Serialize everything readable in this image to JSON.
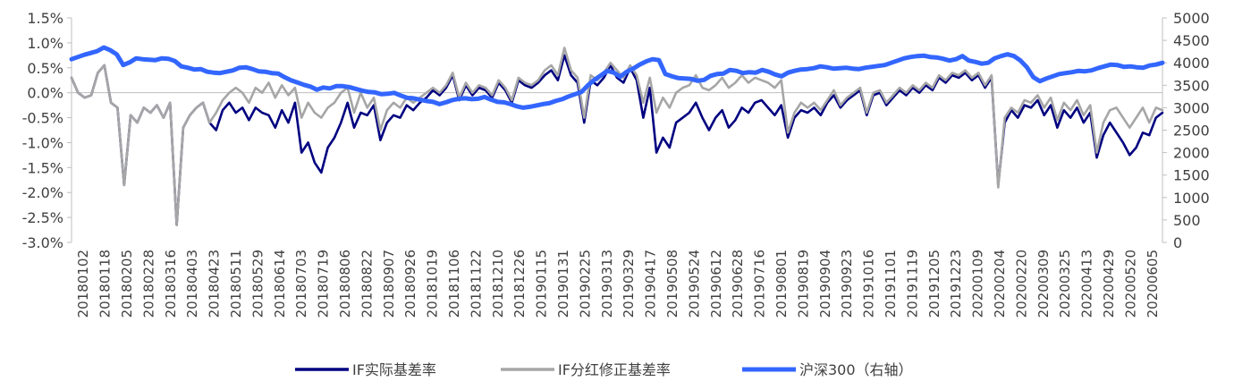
{
  "chart_data": {
    "type": "line",
    "x_tick_labels": [
      "20180102",
      "20180118",
      "20180205",
      "20180228",
      "20180316",
      "20180403",
      "20180423",
      "20180511",
      "20180529",
      "20180614",
      "20180703",
      "20180719",
      "20180806",
      "20180822",
      "20180907",
      "20180926",
      "20181019",
      "20181106",
      "20181122",
      "20181210",
      "20181226",
      "20190115",
      "20190131",
      "20190225",
      "20190313",
      "20190329",
      "20190417",
      "20190508",
      "20190524",
      "20190612",
      "20190628",
      "20190716",
      "20190801",
      "20190819",
      "20190904",
      "20190923",
      "20191016",
      "20191101",
      "20191119",
      "20191205",
      "20191223",
      "20200109",
      "20200204",
      "20200220",
      "20200309",
      "20200325",
      "20200413",
      "20200429",
      "20200520",
      "20200605"
    ],
    "y_left": {
      "ticks": [
        "-3.0%",
        "-2.5%",
        "-2.0%",
        "-1.5%",
        "-1.0%",
        "-0.5%",
        "0.0%",
        "0.5%",
        "1.0%",
        "1.5%"
      ],
      "range": [
        -3.0,
        1.5
      ],
      "unit": "%"
    },
    "y_right": {
      "ticks": [
        "0",
        "500",
        "1000",
        "1500",
        "2000",
        "2500",
        "3000",
        "3500",
        "4000",
        "4500",
        "5000"
      ],
      "range": [
        0,
        5000
      ]
    },
    "legend": [
      "IF实际基差率",
      "IF分红修正基差率",
      "沪深300（右轴）"
    ],
    "series": [
      {
        "name": "IF实际基差率",
        "axis": "left",
        "color": "#000080",
        "values": [
          0.3,
          0.0,
          -0.1,
          -0.05,
          0.4,
          0.55,
          -0.2,
          -0.3,
          -1.85,
          -0.45,
          -0.6,
          -0.3,
          -0.4,
          -0.25,
          -0.5,
          -0.2,
          -2.65,
          -0.7,
          -0.45,
          -0.3,
          -0.2,
          -0.6,
          -0.75,
          -0.35,
          -0.2,
          -0.4,
          -0.3,
          -0.55,
          -0.3,
          -0.4,
          -0.45,
          -0.7,
          -0.35,
          -0.6,
          -0.2,
          -1.2,
          -1.0,
          -1.4,
          -1.6,
          -1.1,
          -0.9,
          -0.6,
          -0.2,
          -0.7,
          -0.4,
          -0.45,
          -0.25,
          -0.95,
          -0.6,
          -0.45,
          -0.5,
          -0.25,
          -0.35,
          -0.2,
          -0.1,
          0.05,
          -0.05,
          0.1,
          0.35,
          -0.15,
          0.15,
          -0.05,
          0.1,
          0.05,
          -0.1,
          0.2,
          0.05,
          -0.2,
          0.25,
          0.15,
          0.1,
          0.2,
          0.35,
          0.45,
          0.25,
          0.75,
          0.35,
          0.2,
          -0.6,
          0.25,
          0.15,
          0.3,
          0.55,
          0.3,
          0.2,
          0.5,
          0.25,
          -0.5,
          0.1,
          -1.2,
          -0.9,
          -1.1,
          -0.6,
          -0.5,
          -0.4,
          -0.2,
          -0.5,
          -0.75,
          -0.5,
          -0.35,
          -0.7,
          -0.55,
          -0.3,
          -0.4,
          -0.2,
          -0.15,
          -0.3,
          -0.45,
          -0.25,
          -0.9,
          -0.5,
          -0.35,
          -0.4,
          -0.3,
          -0.45,
          -0.2,
          -0.05,
          -0.3,
          -0.15,
          -0.05,
          0.05,
          -0.45,
          -0.05,
          0.0,
          -0.25,
          -0.1,
          0.05,
          -0.05,
          0.1,
          0.0,
          0.15,
          0.05,
          0.3,
          0.2,
          0.35,
          0.3,
          0.4,
          0.25,
          0.35,
          0.1,
          0.3,
          -1.85,
          -0.6,
          -0.35,
          -0.5,
          -0.25,
          -0.3,
          -0.15,
          -0.45,
          -0.25,
          -0.7,
          -0.35,
          -0.5,
          -0.3,
          -0.6,
          -0.4,
          -1.3,
          -0.85,
          -0.6,
          -0.8,
          -1.0,
          -1.25,
          -1.1,
          -0.8,
          -0.85,
          -0.5,
          -0.4
        ]
      },
      {
        "name": "IF分红修正基差率",
        "axis": "left",
        "color": "#a6a6a6",
        "values": [
          0.3,
          0.0,
          -0.1,
          -0.05,
          0.4,
          0.55,
          -0.2,
          -0.3,
          -1.85,
          -0.45,
          -0.6,
          -0.3,
          -0.4,
          -0.25,
          -0.5,
          -0.2,
          -2.65,
          -0.7,
          -0.45,
          -0.3,
          -0.2,
          -0.6,
          -0.4,
          -0.15,
          0.0,
          0.1,
          0.0,
          -0.2,
          0.1,
          0.0,
          0.2,
          -0.1,
          0.15,
          -0.05,
          0.1,
          -0.5,
          -0.2,
          -0.4,
          -0.5,
          -0.3,
          -0.2,
          0.0,
          0.1,
          -0.4,
          0.0,
          -0.3,
          -0.1,
          -0.75,
          -0.35,
          -0.2,
          -0.3,
          -0.1,
          -0.2,
          -0.1,
          0.0,
          0.1,
          0.0,
          0.15,
          0.4,
          -0.1,
          0.2,
          0.0,
          0.15,
          0.1,
          -0.05,
          0.25,
          0.1,
          -0.15,
          0.3,
          0.2,
          0.15,
          0.25,
          0.45,
          0.55,
          0.35,
          0.9,
          0.45,
          0.3,
          -0.5,
          0.35,
          0.25,
          0.4,
          0.6,
          0.45,
          0.3,
          0.55,
          0.35,
          -0.2,
          0.3,
          -0.4,
          -0.1,
          -0.3,
          0.0,
          0.1,
          0.15,
          0.35,
          0.1,
          0.05,
          0.15,
          0.3,
          0.1,
          0.2,
          0.35,
          0.2,
          0.3,
          0.25,
          0.2,
          0.1,
          0.25,
          -0.8,
          -0.4,
          -0.2,
          -0.3,
          -0.2,
          -0.35,
          -0.15,
          0.05,
          -0.25,
          -0.1,
          0.0,
          0.1,
          -0.4,
          0.0,
          0.05,
          -0.2,
          -0.05,
          0.1,
          0.0,
          0.15,
          0.05,
          0.2,
          0.1,
          0.35,
          0.25,
          0.4,
          0.35,
          0.45,
          0.3,
          0.4,
          0.15,
          0.35,
          -1.9,
          -0.5,
          -0.3,
          -0.4,
          -0.15,
          -0.2,
          -0.05,
          -0.3,
          -0.1,
          -0.55,
          -0.2,
          -0.35,
          -0.15,
          -0.45,
          -0.25,
          -1.2,
          -0.6,
          -0.35,
          -0.3,
          -0.5,
          -0.7,
          -0.5,
          -0.3,
          -0.6,
          -0.3,
          -0.35
        ]
      },
      {
        "name": "沪深300（右轴）",
        "axis": "right",
        "color": "#3366ff",
        "values": [
          4080,
          4130,
          4180,
          4220,
          4260,
          4340,
          4280,
          4190,
          3950,
          4010,
          4100,
          4080,
          4070,
          4060,
          4100,
          4090,
          4040,
          3920,
          3890,
          3850,
          3860,
          3800,
          3780,
          3770,
          3800,
          3830,
          3890,
          3900,
          3860,
          3810,
          3800,
          3770,
          3760,
          3680,
          3610,
          3560,
          3510,
          3470,
          3400,
          3450,
          3430,
          3480,
          3480,
          3460,
          3420,
          3380,
          3350,
          3340,
          3300,
          3310,
          3330,
          3270,
          3220,
          3210,
          3180,
          3150,
          3130,
          3080,
          3120,
          3170,
          3200,
          3210,
          3190,
          3200,
          3240,
          3180,
          3130,
          3120,
          3080,
          3030,
          3000,
          3020,
          3050,
          3080,
          3100,
          3150,
          3190,
          3250,
          3300,
          3350,
          3500,
          3620,
          3720,
          3820,
          3780,
          3690,
          3800,
          3870,
          3960,
          4030,
          4080,
          4060,
          3750,
          3700,
          3660,
          3650,
          3640,
          3600,
          3620,
          3710,
          3750,
          3760,
          3840,
          3820,
          3770,
          3790,
          3780,
          3840,
          3800,
          3740,
          3700,
          3780,
          3820,
          3850,
          3860,
          3880,
          3920,
          3900,
          3870,
          3880,
          3890,
          3870,
          3860,
          3890,
          3910,
          3930,
          3950,
          4000,
          4050,
          4100,
          4130,
          4150,
          4160,
          4130,
          4120,
          4090,
          4050,
          4080,
          4150,
          4050,
          4020,
          3980,
          4000,
          4100,
          4150,
          4190,
          4150,
          4050,
          3900,
          3680,
          3590,
          3650,
          3700,
          3750,
          3770,
          3790,
          3820,
          3810,
          3830,
          3880,
          3920,
          3960,
          3950,
          3910,
          3920,
          3900,
          3890,
          3940,
          3960,
          4000
        ]
      }
    ]
  }
}
